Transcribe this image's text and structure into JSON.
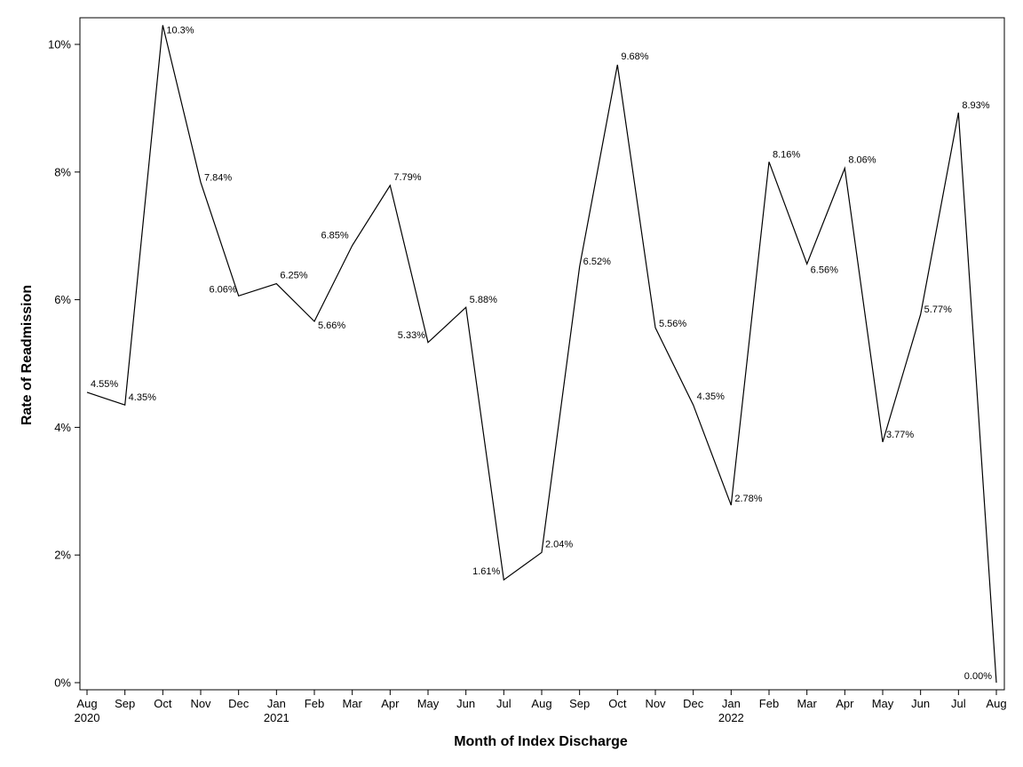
{
  "chart_data": {
    "type": "line",
    "title": "",
    "xlabel": "Month of Index Discharge",
    "ylabel": "Rate of Readmission",
    "ylim": [
      0,
      10.3
    ],
    "y_ticks": [
      0,
      2,
      4,
      6,
      8,
      10
    ],
    "y_tick_labels": [
      "0%",
      "2%",
      "4%",
      "6%",
      "8%",
      "10%"
    ],
    "grid": false,
    "legend": "none",
    "line_color": "#000000",
    "x": [
      {
        "month": "Aug",
        "year": "2020"
      },
      {
        "month": "Sep",
        "year": ""
      },
      {
        "month": "Oct",
        "year": ""
      },
      {
        "month": "Nov",
        "year": ""
      },
      {
        "month": "Dec",
        "year": ""
      },
      {
        "month": "Jan",
        "year": "2021"
      },
      {
        "month": "Feb",
        "year": ""
      },
      {
        "month": "Mar",
        "year": ""
      },
      {
        "month": "Apr",
        "year": ""
      },
      {
        "month": "May",
        "year": ""
      },
      {
        "month": "Jun",
        "year": ""
      },
      {
        "month": "Jul",
        "year": ""
      },
      {
        "month": "Aug",
        "year": ""
      },
      {
        "month": "Sep",
        "year": ""
      },
      {
        "month": "Oct",
        "year": ""
      },
      {
        "month": "Nov",
        "year": ""
      },
      {
        "month": "Dec",
        "year": ""
      },
      {
        "month": "Jan",
        "year": "2022"
      },
      {
        "month": "Feb",
        "year": ""
      },
      {
        "month": "Mar",
        "year": ""
      },
      {
        "month": "Apr",
        "year": ""
      },
      {
        "month": "May",
        "year": ""
      },
      {
        "month": "Jun",
        "year": ""
      },
      {
        "month": "Jul",
        "year": ""
      },
      {
        "month": "Aug",
        "year": ""
      }
    ],
    "values": [
      4.55,
      4.35,
      10.3,
      7.84,
      6.06,
      6.25,
      5.66,
      6.85,
      7.79,
      5.33,
      5.88,
      1.61,
      2.04,
      6.52,
      9.68,
      5.56,
      4.35,
      2.78,
      8.16,
      6.56,
      8.06,
      3.77,
      5.77,
      8.93,
      0.0
    ],
    "data_labels": [
      "4.55%",
      "4.35%",
      "10.3%",
      "7.84%",
      "6.06%",
      "6.25%",
      "5.66%",
      "6.85%",
      "7.79%",
      "5.33%",
      "5.88%",
      "1.61%",
      "2.04%",
      "6.52%",
      "9.68%",
      "5.56%",
      "4.35%",
      "2.78%",
      "8.16%",
      "6.56%",
      "8.06%",
      "3.77%",
      "5.77%",
      "8.93%",
      "0.00%"
    ]
  }
}
